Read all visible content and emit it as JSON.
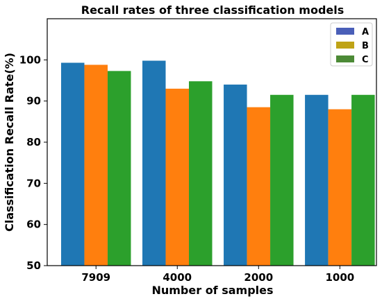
{
  "chart_data": {
    "type": "bar",
    "title": "Recall rates of three classification models",
    "xlabel": "Number of samples",
    "ylabel": "Classification Recall Rate(%)",
    "categories": [
      "7909",
      "4000",
      "2000",
      "1000"
    ],
    "series": [
      {
        "name": "A",
        "color": "#1f77b4",
        "legend_color": "#4a5fb8",
        "values": [
          99.3,
          99.8,
          94.0,
          91.5
        ]
      },
      {
        "name": "B",
        "color": "#ff7f0e",
        "legend_color": "#bfa316",
        "values": [
          98.8,
          93.0,
          88.5,
          88.0
        ]
      },
      {
        "name": "C",
        "color": "#2ca02c",
        "legend_color": "#4c8a36",
        "values": [
          97.3,
          94.8,
          91.5,
          91.5
        ]
      }
    ],
    "ylim": [
      50,
      110
    ],
    "yticks": [
      50,
      60,
      70,
      80,
      90,
      100
    ],
    "grid": false,
    "legend_position": "top-right"
  }
}
